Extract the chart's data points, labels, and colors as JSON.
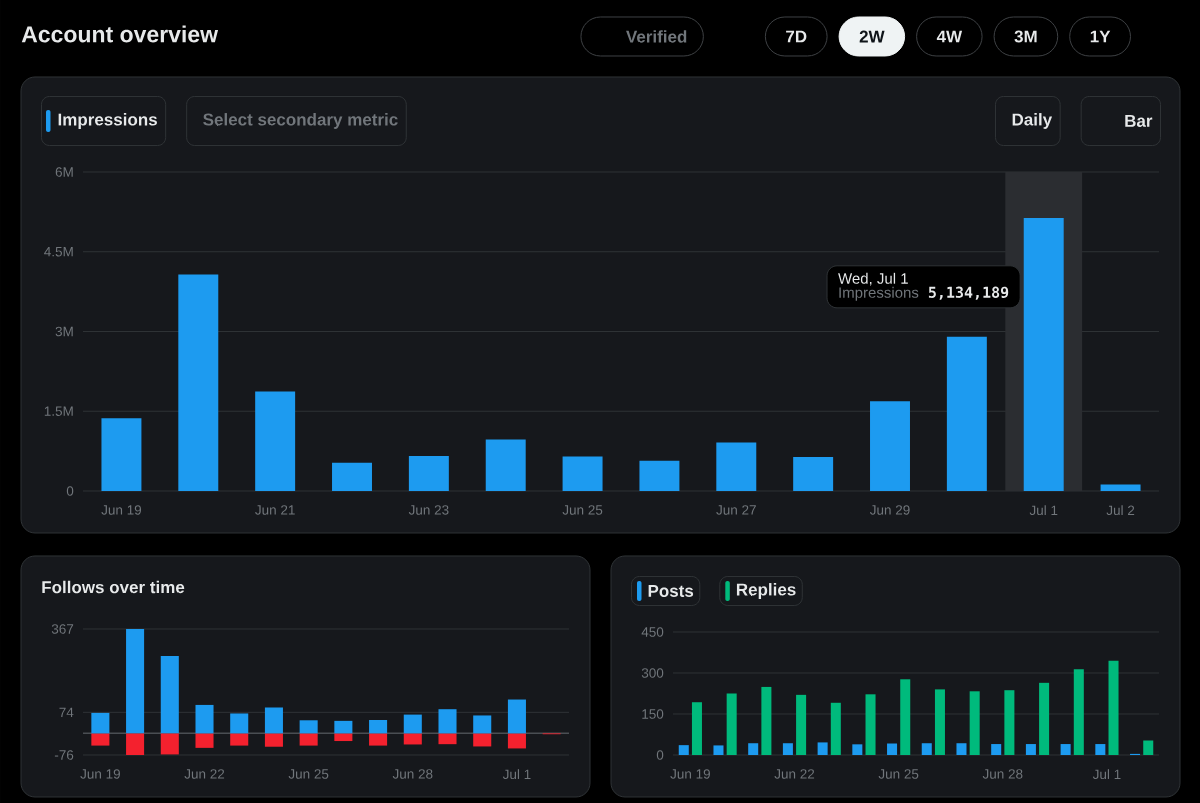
{
  "chart_data": [
    {
      "type": "other",
      "title": "Account overview",
      "annotations": [
        "Verified",
        "7D",
        "2W",
        "4W",
        "3M",
        "1Y"
      ]
    },
    {
      "type": "bar",
      "categories": [
        "Jun 19",
        null,
        "Jun 21",
        null,
        "Jun 23",
        null,
        "Jun 25",
        null,
        "Jun 27",
        null,
        "Jun 29",
        null,
        "Jul 1",
        "Jul 2"
      ],
      "series": [
        {
          "name": "Impressions",
          "color": "#1d9bf0",
          "values": [
            1370000,
            4070000,
            1870000,
            530000,
            660000,
            970000,
            650000,
            570000,
            910000,
            640000,
            1690000,
            2900000,
            5134189,
            120000
          ]
        }
      ],
      "ylim": [
        0,
        6000000
      ],
      "yticks": [
        0,
        {
          "value": 1500000,
          "label": "1.5M"
        },
        {
          "value": 3000000,
          "label": "3M"
        },
        {
          "value": 4500000,
          "label": "4.5M"
        },
        {
          "value": 6000000,
          "label": "6M"
        }
      ],
      "grid": "y",
      "legend": "top left",
      "bands": [
        {
          "axis": "x",
          "from": "Jul 1",
          "to": "Jul 1",
          "color": "#2b2d31"
        }
      ],
      "annotations": [
        "Wed, Jul 1",
        "5,134,189",
        "Select secondary metric",
        "Daily",
        "Bar"
      ]
    },
    {
      "type": "bar",
      "title": "Follows over time",
      "stacked": true,
      "categories": [
        "Jun 19",
        null,
        null,
        "Jun 22",
        null,
        null,
        "Jun 25",
        null,
        null,
        "Jun 28",
        null,
        null,
        "Jul 1",
        null
      ],
      "series": [
        {
          "color": "#1d9bf0",
          "values": [
            72,
            367,
            272,
            100,
            70,
            91,
            46,
            44,
            47,
            66,
            85,
            63,
            119,
            null
          ]
        },
        {
          "color": "#f4212e",
          "values": [
            -43,
            -76,
            -74,
            -51,
            -43,
            -47,
            -43,
            -27,
            -43,
            -39,
            -38,
            -46,
            -53,
            -3
          ]
        }
      ],
      "ylim": [
        -76,
        367
      ],
      "yticks": [
        -76,
        74,
        367
      ],
      "grid": "y",
      "ref_lines": [
        {
          "axis": "y",
          "value": 0,
          "color": "#4a4e53"
        }
      ]
    },
    {
      "type": "bar",
      "categories": [
        "Jun 19",
        null,
        null,
        "Jun 22",
        null,
        null,
        "Jun 25",
        null,
        null,
        "Jun 28",
        null,
        null,
        "Jul 1",
        null
      ],
      "series": [
        {
          "name": "Posts",
          "color": "#1d9bf0",
          "values": [
            36,
            35,
            43,
            43,
            46,
            39,
            42,
            43,
            43,
            40,
            40,
            40,
            40,
            4
          ]
        },
        {
          "name": "Replies",
          "color": "#00ba7c",
          "values": [
            193,
            225,
            249,
            220,
            191,
            222,
            277,
            240,
            233,
            237,
            264,
            314,
            345,
            53
          ]
        }
      ],
      "ylim": [
        0,
        450
      ],
      "yticks": [
        0,
        150,
        300,
        450
      ],
      "grid": "y",
      "legend": "top left"
    }
  ]
}
